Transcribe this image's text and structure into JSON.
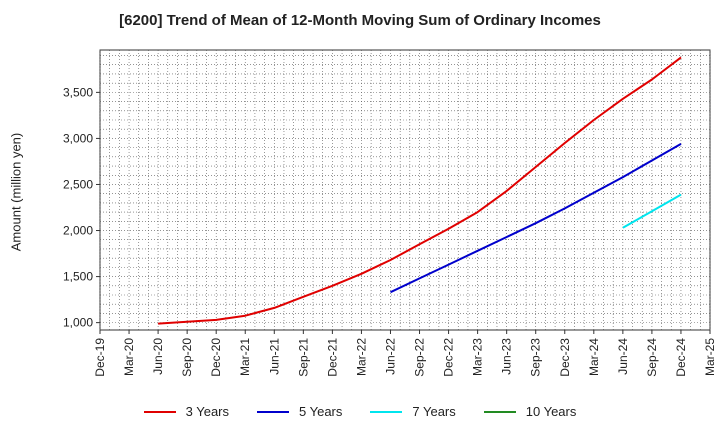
{
  "chart_data": {
    "type": "line",
    "title": "[6200]  Trend of Mean of 12-Month Moving Sum of Ordinary Incomes",
    "xlabel": "",
    "ylabel": "Amount (million yen)",
    "x_ticks": [
      "Dec-19",
      "Mar-20",
      "Jun-20",
      "Sep-20",
      "Dec-20",
      "Mar-21",
      "Jun-21",
      "Sep-21",
      "Dec-21",
      "Mar-22",
      "Jun-22",
      "Sep-22",
      "Dec-22",
      "Mar-23",
      "Jun-23",
      "Sep-23",
      "Dec-23",
      "Mar-24",
      "Jun-24",
      "Sep-24",
      "Dec-24",
      "Mar-25"
    ],
    "y_ticks": [
      1000,
      1500,
      2000,
      2500,
      3000,
      3500
    ],
    "y_tick_labels": [
      "1,000",
      "1,500",
      "2,000",
      "2,500",
      "3,000",
      "3,500"
    ],
    "ylim": [
      920,
      3960
    ],
    "grid": true,
    "legend_position": "bottom",
    "series": [
      {
        "name": "3 Years",
        "color": "#e00000",
        "x": [
          "Jun-20",
          "Sep-20",
          "Dec-20",
          "Mar-21",
          "Jun-21",
          "Sep-21",
          "Dec-21",
          "Mar-22",
          "Jun-22",
          "Sep-22",
          "Dec-22",
          "Mar-23",
          "Jun-23",
          "Sep-23",
          "Dec-23",
          "Mar-24",
          "Jun-24",
          "Sep-24",
          "Dec-24"
        ],
        "values": [
          990,
          1010,
          1030,
          1075,
          1160,
          1280,
          1400,
          1530,
          1680,
          1850,
          2020,
          2200,
          2430,
          2690,
          2950,
          3200,
          3430,
          3640,
          3880
        ]
      },
      {
        "name": "5 Years",
        "color": "#0000cc",
        "x": [
          "Jun-22",
          "Sep-22",
          "Dec-22",
          "Mar-23",
          "Jun-23",
          "Sep-23",
          "Dec-23",
          "Mar-24",
          "Jun-24",
          "Sep-24",
          "Dec-24"
        ],
        "values": [
          1330,
          1480,
          1630,
          1780,
          1930,
          2080,
          2240,
          2410,
          2580,
          2760,
          2940
        ]
      },
      {
        "name": "7 Years",
        "color": "#00e5ee",
        "x": [
          "Jun-24",
          "Sep-24",
          "Dec-24"
        ],
        "values": [
          2030,
          2210,
          2390
        ]
      },
      {
        "name": "10 Years",
        "color": "#228b22",
        "x": [],
        "values": []
      }
    ]
  }
}
